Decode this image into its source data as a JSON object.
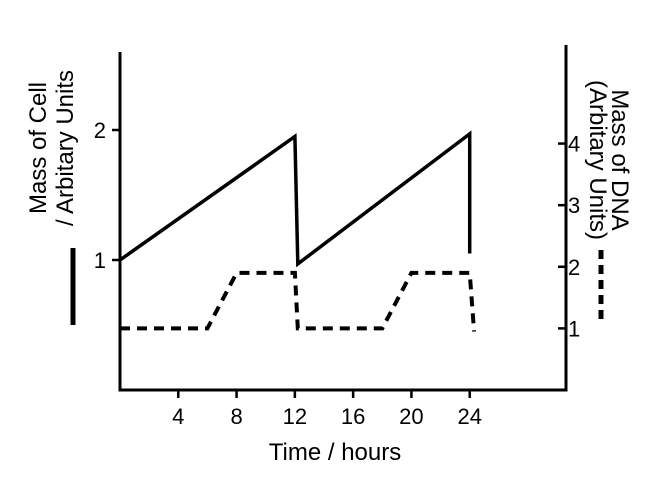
{
  "chart_data": {
    "type": "line",
    "xlabel": "Time / hours",
    "y_left_label_line1": "Mass of Cell",
    "y_left_label_line2": "/ Arbitary Units",
    "y_right_label_line1": "Mass of DNA",
    "y_right_label_line2": "(Arbitary Units)",
    "x_ticks": [
      4,
      8,
      12,
      16,
      20,
      24
    ],
    "y_left_ticks": [
      1,
      2
    ],
    "y_right_ticks": [
      1,
      2,
      3,
      4
    ],
    "xlim": [
      0,
      28
    ],
    "ylim_left": [
      0,
      2.6
    ],
    "ylim_right": [
      0,
      5.6
    ],
    "series": [
      {
        "axis": "left",
        "style": "solid",
        "x": [
          0,
          12,
          12.2,
          24,
          24
        ],
        "y": [
          1.0,
          1.95,
          0.97,
          1.97,
          1.05
        ]
      },
      {
        "axis": "right",
        "style": "dashed",
        "x": [
          0,
          6,
          8,
          12,
          12.2,
          18,
          20,
          24,
          24.3
        ],
        "y": [
          1.0,
          1.0,
          1.9,
          1.9,
          1.0,
          1.0,
          1.9,
          1.9,
          0.95
        ]
      }
    ]
  }
}
